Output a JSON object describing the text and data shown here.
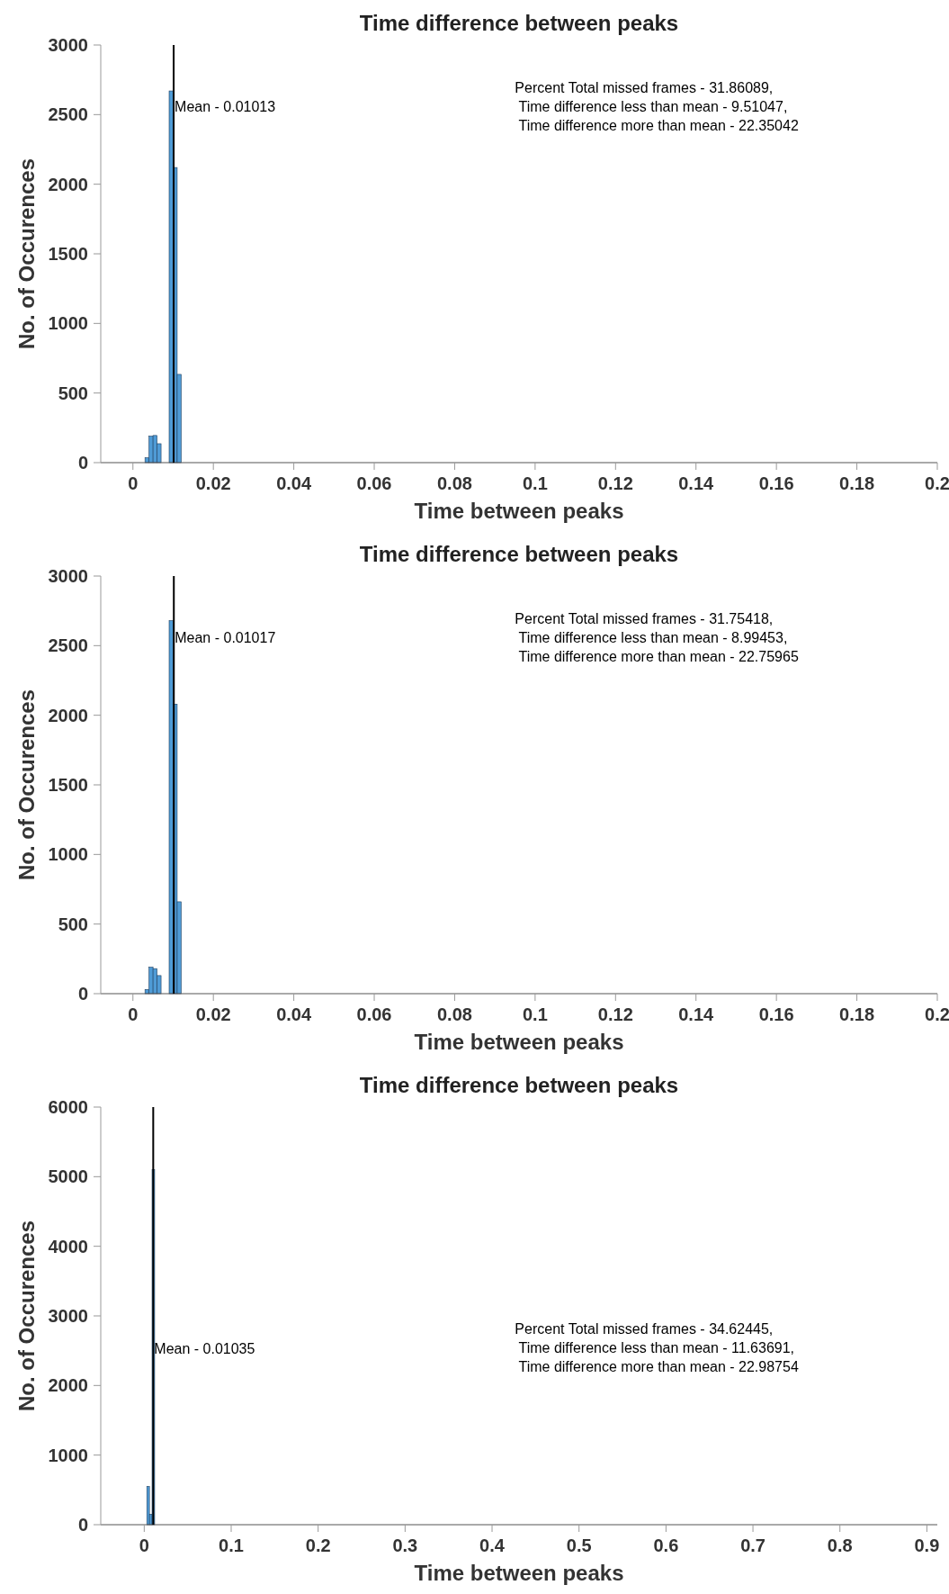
{
  "chart_data": [
    {
      "type": "histogram",
      "title": "Time difference between peaks",
      "xlabel": "Time between peaks",
      "ylabel": "No. of Occurences",
      "color": "#4f9bd6",
      "bins": [
        0.003,
        0.004,
        0.005,
        0.006,
        0.007,
        0.009,
        0.01,
        0.011,
        0.012
      ],
      "values": [
        35,
        190,
        195,
        136,
        0,
        2670,
        2120,
        634
      ],
      "xlim": [
        -0.008,
        0.2
      ],
      "xticks": [
        0,
        0.02,
        0.04,
        0.06,
        0.08,
        0.1,
        0.12,
        0.14,
        0.16,
        0.18,
        0.2
      ],
      "ylim": [
        0,
        3000
      ],
      "yticks": [
        0,
        500,
        1000,
        1500,
        2000,
        2500,
        3000
      ],
      "grid": false,
      "ref_lines": [
        {
          "axis": "x",
          "value": 0.01013,
          "label": "Mean - 0.01013",
          "color": "#000000"
        }
      ],
      "annotations": [
        "Percent Total missed frames - 31.86089,\n Time difference less than mean - 9.51047,\n Time difference more than mean - 22.35042"
      ]
    },
    {
      "type": "histogram",
      "title": "Time difference between peaks",
      "xlabel": "Time between peaks",
      "ylabel": "No. of Occurences",
      "color": "#4f9bd6",
      "bins": [
        0.003,
        0.004,
        0.005,
        0.006,
        0.007,
        0.009,
        0.01,
        0.011,
        0.012
      ],
      "values": [
        30,
        190,
        180,
        130,
        0,
        2680,
        2080,
        660
      ],
      "xlim": [
        -0.008,
        0.2
      ],
      "xticks": [
        0,
        0.02,
        0.04,
        0.06,
        0.08,
        0.1,
        0.12,
        0.14,
        0.16,
        0.18,
        0.2
      ],
      "ylim": [
        0,
        3000
      ],
      "yticks": [
        0,
        500,
        1000,
        1500,
        2000,
        2500,
        3000
      ],
      "grid": false,
      "ref_lines": [
        {
          "axis": "x",
          "value": 0.01017,
          "label": "Mean - 0.01017",
          "color": "#000000"
        }
      ],
      "annotations": [
        "Percent Total missed frames - 31.75418,\n Time difference less than mean - 8.99453,\n Time difference more than mean - 22.75965"
      ]
    },
    {
      "type": "histogram",
      "title": "Time difference between peaks",
      "xlabel": "Time between peaks",
      "ylabel": "No. of Occurences",
      "color": "#4f9bd6",
      "bins": [
        0.003,
        0.006,
        0.009,
        0.012
      ],
      "values": [
        550,
        150,
        5100
      ],
      "xlim": [
        -0.05,
        0.912
      ],
      "xticks": [
        0,
        0.1,
        0.2,
        0.3,
        0.4,
        0.5,
        0.6,
        0.7,
        0.8,
        0.9
      ],
      "ylim": [
        0,
        6000
      ],
      "yticks": [
        0,
        1000,
        2000,
        3000,
        4000,
        5000,
        6000
      ],
      "grid": false,
      "ref_lines": [
        {
          "axis": "x",
          "value": 0.01035,
          "label": "Mean - 0.01035",
          "color": "#000000"
        }
      ],
      "annotations": [
        "Percent Total missed frames - 34.62445,\n Time difference less than mean - 11.63691,\n Time difference more than mean - 22.98754"
      ]
    }
  ]
}
